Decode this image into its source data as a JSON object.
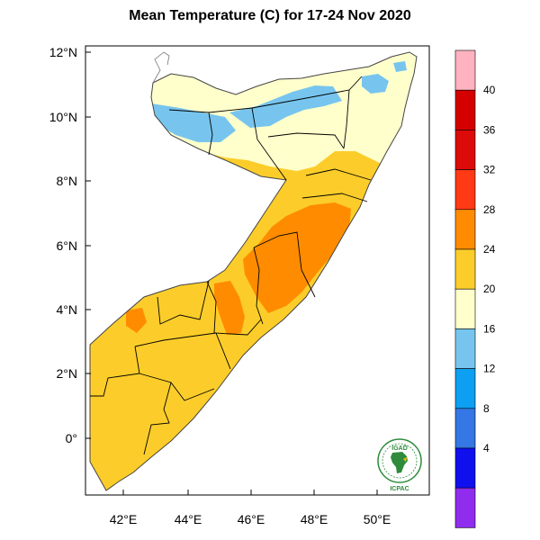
{
  "title": "Mean Temperature (C) for 17-24 Nov 2020",
  "map": {
    "region": "Somalia",
    "projection": "lat-lon",
    "lon_range": [
      41.0,
      51.3
    ],
    "lat_range": [
      -1.6,
      12.3
    ],
    "x_ticks": [
      "42°E",
      "44°E",
      "46°E",
      "48°E",
      "50°E"
    ],
    "y_ticks": [
      "12°N",
      "10°N",
      "8°N",
      "6°N",
      "4°N",
      "2°N",
      "0°"
    ],
    "dominant_band": "24–28",
    "warm_core_band": "28–32",
    "cool_bands_north": [
      "20–24",
      "16–20"
    ]
  },
  "colorbar": {
    "labels": [
      "40",
      "36",
      "32",
      "28",
      "24",
      "20",
      "16",
      "12",
      "8",
      "4"
    ],
    "bins": [
      {
        "range": ">44",
        "color": "#ffb3c0"
      },
      {
        "range": "40–44",
        "color": "#d40000"
      },
      {
        "range": "36–40",
        "color": "#dd0a0a"
      },
      {
        "range": "32–36",
        "color": "#ff3a14"
      },
      {
        "range": "28–32",
        "color": "#ff8c00"
      },
      {
        "range": "24–28",
        "color": "#fccd2a"
      },
      {
        "range": "20–24",
        "color": "#ffffcc"
      },
      {
        "range": "16–20",
        "color": "#77c5ee"
      },
      {
        "range": "12–16",
        "color": "#0d9ff1"
      },
      {
        "range": "8–12",
        "color": "#3477e5"
      },
      {
        "range": "4–8",
        "color": "#1010ef"
      },
      {
        "range": "<4",
        "color": "#8f2cee"
      }
    ]
  },
  "logo": {
    "top_text": "IGAD",
    "bottom_text": "ICPAC",
    "color": "#2e8b3b"
  }
}
